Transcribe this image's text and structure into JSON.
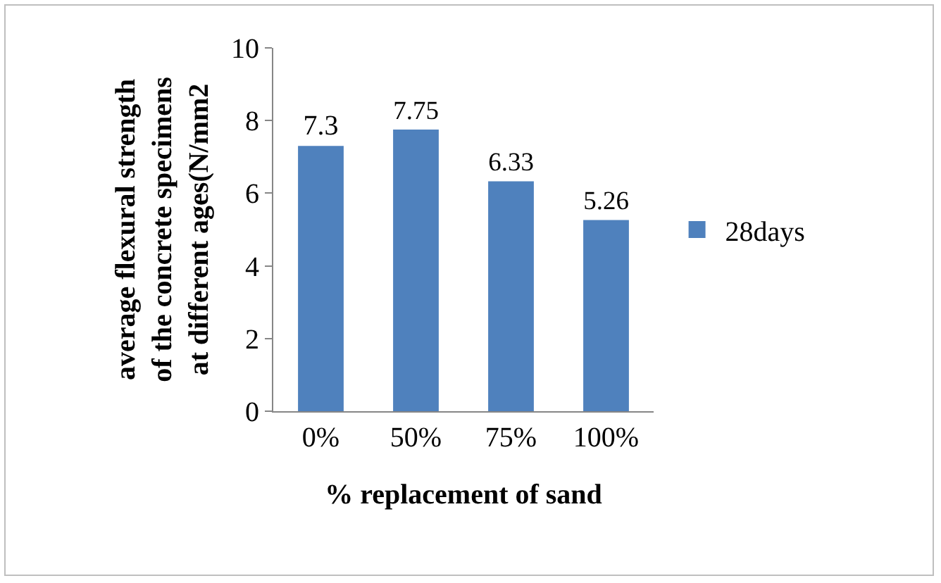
{
  "chart_data": {
    "type": "bar",
    "xlabel": "% replacement of sand",
    "ylabel": "average flexural strength of the concrete specimens at different ages(N/mm2",
    "categories": [
      "0%",
      "50%",
      "75%",
      "100%"
    ],
    "series": [
      {
        "name": "28days",
        "color": "#4f81bd",
        "values": [
          7.3,
          7.75,
          6.33,
          5.26
        ]
      }
    ],
    "ylim": [
      0,
      10
    ],
    "yticks": [
      0,
      2,
      4,
      6,
      8,
      10
    ],
    "grid": false,
    "legend": "right",
    "data_labels": true
  }
}
